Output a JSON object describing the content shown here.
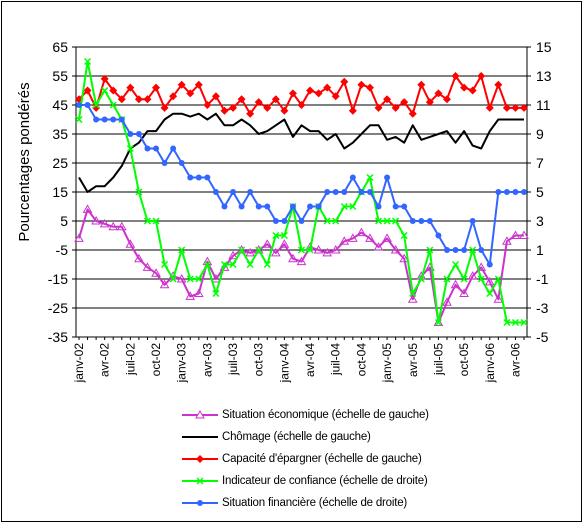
{
  "chart_data": {
    "type": "line",
    "ylabel": "Pourcentages pondérés",
    "y_left": {
      "min": -35,
      "max": 65,
      "ticks": [
        -35,
        -25,
        -15,
        -5,
        5,
        15,
        25,
        35,
        45,
        55,
        65
      ]
    },
    "y_right": {
      "min": -5,
      "max": 15,
      "ticks": [
        -5,
        -3,
        -1,
        1,
        3,
        5,
        7,
        9,
        11,
        13,
        15
      ]
    },
    "grid": "horizontal",
    "x_labels": [
      "janv-02",
      "avr-02",
      "juil-02",
      "oct-02",
      "janv-03",
      "avr-03",
      "juil-03",
      "oct-03",
      "janv-04",
      "avr-04",
      "juil-04",
      "oct-04",
      "janv-05",
      "avr-05",
      "juil-05",
      "oct-05",
      "janv-06",
      "avr-06"
    ],
    "n_points": 53,
    "series": [
      {
        "name": "Situation économique (échelle de gauche)",
        "axis": "left",
        "color": "#cc33cc",
        "marker": "triangle",
        "values": [
          -1,
          9,
          5,
          4,
          3,
          3,
          -3,
          -8,
          -11,
          -13,
          -17,
          -14,
          -15,
          -21,
          -20,
          -9,
          -15,
          -11,
          -7,
          -5,
          -6,
          -5,
          -3,
          -6,
          -3,
          -8,
          -9,
          -4,
          -5,
          -6,
          -5,
          -2,
          -1,
          1,
          -1,
          -4,
          -1,
          -5,
          -8,
          -22,
          -14,
          -11,
          -30,
          -23,
          -17,
          -20,
          -14,
          -11,
          -16,
          -22,
          -2,
          0,
          0
        ]
      },
      {
        "name": "Chômage (échelle de gauche)",
        "axis": "left",
        "color": "#000000",
        "marker": "none",
        "values": [
          20,
          15,
          17,
          17,
          20,
          24,
          30,
          32,
          36,
          36,
          40,
          42,
          42,
          41,
          42,
          40,
          42,
          38,
          38,
          40,
          38,
          35,
          36,
          38,
          40,
          34,
          38,
          36,
          36,
          33,
          35,
          30,
          32,
          35,
          38,
          38,
          33,
          34,
          32,
          38,
          33,
          34,
          35,
          36,
          32,
          36,
          31,
          30,
          36,
          40,
          40,
          40,
          40
        ]
      },
      {
        "name": "Capacité d'épargner (échelle de gauche)",
        "axis": "left",
        "color": "#ff0000",
        "marker": "diamond",
        "values": [
          47,
          50,
          44,
          54,
          50,
          47,
          51,
          47,
          47,
          51,
          44,
          48,
          52,
          49,
          52,
          45,
          48,
          43,
          44,
          47,
          42,
          46,
          44,
          47,
          43,
          49,
          45,
          50,
          49,
          51,
          48,
          53,
          43,
          52,
          51,
          44,
          47,
          44,
          46,
          42,
          52,
          46,
          49,
          47,
          55,
          51,
          50,
          55,
          44,
          52,
          44,
          44,
          44
        ]
      },
      {
        "name": "Indicateur de confiance (échelle de droite)",
        "axis": "right",
        "color": "#00ff00",
        "marker": "x",
        "values": [
          10,
          14,
          11,
          12,
          11,
          10,
          8,
          5,
          3,
          3,
          0,
          -1,
          1,
          -1,
          -1,
          0,
          -2,
          0,
          0,
          1,
          0,
          1,
          0,
          2,
          2,
          4,
          1,
          1,
          4,
          3,
          3,
          4,
          4,
          5,
          6,
          3,
          3,
          3,
          2,
          -2,
          -1,
          1,
          -4,
          -1,
          0,
          -1,
          1,
          -1,
          -2,
          -1,
          -4,
          -4,
          -4
        ]
      },
      {
        "name": "Situation financière (échelle de droite)",
        "axis": "right",
        "color": "#3366ff",
        "marker": "circle",
        "values": [
          11,
          11,
          10,
          10,
          10,
          10,
          9,
          9,
          8,
          8,
          7,
          8,
          7,
          6,
          6,
          6,
          5,
          4,
          5,
          4,
          5,
          4,
          4,
          3,
          3,
          4,
          3,
          4,
          4,
          5,
          5,
          5,
          6,
          5,
          5,
          4,
          6,
          4,
          4,
          3,
          3,
          3,
          2,
          1,
          1,
          1,
          3,
          1,
          0,
          5,
          5,
          5,
          5
        ]
      }
    ]
  }
}
